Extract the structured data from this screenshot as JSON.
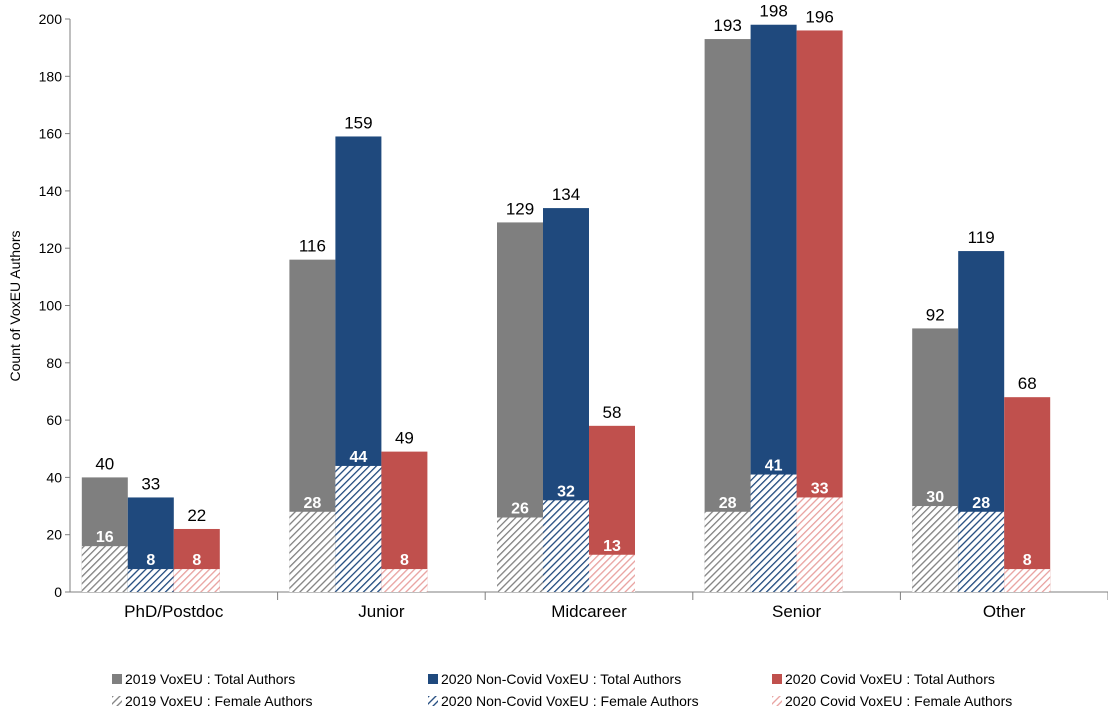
{
  "chart_data": {
    "type": "bar",
    "title": "",
    "xlabel": "",
    "ylabel": "Count of VoxEU Authors",
    "ylim": [
      0,
      200
    ],
    "yticks": [
      0,
      20,
      40,
      60,
      80,
      100,
      120,
      140,
      160,
      180,
      200
    ],
    "categories": [
      "PhD/Postdoc",
      "Junior",
      "Midcareer",
      "Senior",
      "Other"
    ],
    "grid": false,
    "legend_position": "bottom",
    "series": [
      {
        "name": "2019 VoxEU : Total Authors",
        "color": "#7f7f7f",
        "values": [
          40,
          116,
          129,
          193,
          92
        ]
      },
      {
        "name": "2020 Non-Covid VoxEU : Total Authors",
        "color": "#1f497d",
        "values": [
          33,
          159,
          134,
          198,
          119
        ]
      },
      {
        "name": "2020 Covid VoxEU : Total Authors",
        "color": "#c0504d",
        "values": [
          22,
          49,
          58,
          196,
          68
        ]
      },
      {
        "name": "2019 VoxEU : Female Authors",
        "color": "#7f7f7f",
        "pattern": "hatched",
        "values": [
          16,
          28,
          26,
          28,
          30
        ]
      },
      {
        "name": "2020 Non-Covid VoxEU : Female Authors",
        "color": "#1f497d",
        "pattern": "hatched",
        "values": [
          8,
          44,
          32,
          41,
          28
        ]
      },
      {
        "name": "2020 Covid VoxEU : Female Authors",
        "color": "#c0504d",
        "pattern": "hatched",
        "values": [
          8,
          8,
          13,
          33,
          8
        ]
      }
    ]
  }
}
